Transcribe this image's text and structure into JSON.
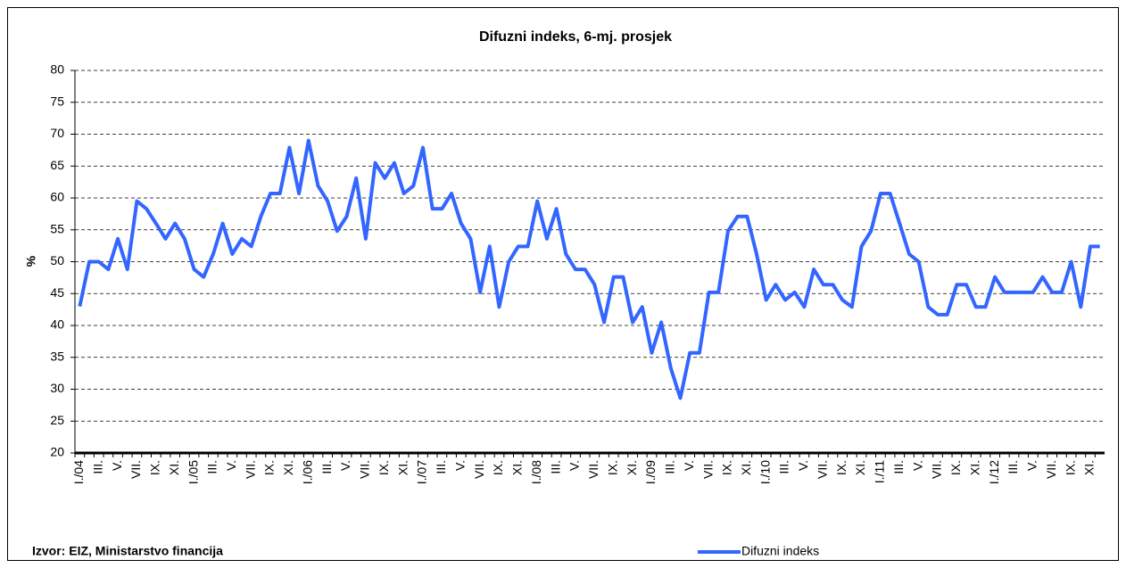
{
  "chart_data": {
    "type": "line",
    "title": "Difuzni indeks, 6-mj. prosjek",
    "ylabel": "%",
    "source": "Izvor: EIZ, Ministarstvo financija",
    "legend": "bottom",
    "grid": true,
    "ylim": [
      20,
      80
    ],
    "yticks": [
      20,
      25,
      30,
      35,
      40,
      45,
      50,
      55,
      60,
      65,
      70,
      75,
      80
    ],
    "categories": [
      "I./04",
      null,
      "III.",
      null,
      "V.",
      null,
      "VII.",
      null,
      "IX.",
      null,
      "XI.",
      null,
      "I./05",
      null,
      "III.",
      null,
      "V.",
      null,
      "VII.",
      null,
      "IX.",
      null,
      "XI.",
      null,
      "I./06",
      null,
      "III.",
      null,
      "V.",
      null,
      "VII.",
      null,
      "IX.",
      null,
      "XI.",
      null,
      "I./07",
      null,
      "III.",
      null,
      "V.",
      null,
      "VII.",
      null,
      "IX.",
      null,
      "XI.",
      null,
      "I./08",
      null,
      "III.",
      null,
      "V.",
      null,
      "VII.",
      null,
      "IX.",
      null,
      "XI.",
      null,
      "I./09",
      null,
      "III.",
      null,
      "V.",
      null,
      "VII.",
      null,
      "IX.",
      null,
      "XI.",
      null,
      "I./10",
      null,
      "III.",
      null,
      "V.",
      null,
      "VII.",
      null,
      "IX.",
      null,
      "XI.",
      null,
      "I./11",
      null,
      "III.",
      null,
      "V.",
      null,
      "VII.",
      null,
      "IX.",
      null,
      "XI.",
      null,
      "I./12",
      null,
      "III.",
      null,
      "V.",
      null,
      "VII.",
      null,
      "IX.",
      null,
      "XI.",
      null
    ],
    "series": [
      {
        "name": "Difuzni indeks",
        "color": "#3366ff",
        "values": [
          43,
          50,
          50,
          48.8,
          53.6,
          48.8,
          59.5,
          58.3,
          56,
          53.6,
          56,
          53.6,
          48.8,
          47.6,
          51.2,
          56,
          51.2,
          53.6,
          52.4,
          57.1,
          60.7,
          60.7,
          67.9,
          60.7,
          69,
          61.9,
          59.5,
          54.8,
          57.1,
          63.1,
          53.6,
          65.5,
          63.1,
          65.5,
          60.7,
          61.9,
          67.9,
          58.3,
          58.3,
          60.7,
          56,
          53.6,
          45.2,
          52.4,
          42.9,
          50,
          52.4,
          52.4,
          59.5,
          53.6,
          58.3,
          51.2,
          48.8,
          48.8,
          46.4,
          40.5,
          47.6,
          47.6,
          40.5,
          42.9,
          35.7,
          40.5,
          33.3,
          28.6,
          35.7,
          35.7,
          45.2,
          45.2,
          54.8,
          57.1,
          57.1,
          51.2,
          44,
          46.4,
          44,
          45.2,
          42.9,
          48.8,
          46.4,
          46.4,
          44,
          42.9,
          52.4,
          54.8,
          60.7,
          60.7,
          56,
          51.2,
          50,
          42.9,
          41.7,
          41.7,
          46.4,
          46.4,
          42.9,
          42.9,
          47.6,
          45.2,
          45.2,
          45.2,
          45.2,
          47.6,
          45.2,
          45.2,
          50,
          42.9,
          52.4,
          52.4
        ]
      }
    ]
  }
}
